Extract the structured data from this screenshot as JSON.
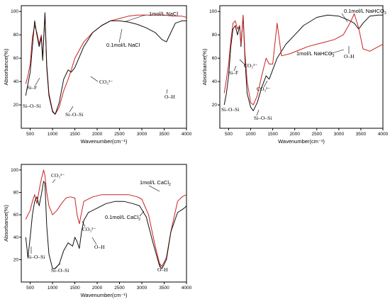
{
  "chart_data": [
    {
      "type": "line",
      "xlabel": "Wavenumber(cm⁻¹)",
      "ylabel": "Absorbance(%)",
      "xlim": [
        300,
        4000
      ],
      "ylim": [
        0,
        105
      ],
      "xticks": [
        500,
        1000,
        1500,
        2000,
        2500,
        3000,
        3500,
        4000
      ],
      "yticks": [
        20,
        40,
        60,
        80,
        100
      ],
      "series": [
        {
          "name": "1mol/L NaCl",
          "color": "#cc2222",
          "points": [
            [
              400,
              38
            ],
            [
              450,
              45
            ],
            [
              500,
              55
            ],
            [
              550,
              78
            ],
            [
              600,
              88
            ],
            [
              650,
              82
            ],
            [
              700,
              72
            ],
            [
              750,
              80
            ],
            [
              780,
              60
            ],
            [
              830,
              98
            ],
            [
              870,
              55
            ],
            [
              920,
              30
            ],
            [
              1000,
              15
            ],
            [
              1060,
              12
            ],
            [
              1150,
              18
            ],
            [
              1250,
              32
            ],
            [
              1350,
              42
            ],
            [
              1420,
              50
            ],
            [
              1500,
              60
            ],
            [
              1700,
              74
            ],
            [
              1900,
              82
            ],
            [
              2100,
              88
            ],
            [
              2300,
              92
            ],
            [
              2500,
              94
            ],
            [
              2700,
              96
            ],
            [
              2900,
              97
            ],
            [
              3100,
              97
            ],
            [
              3300,
              97
            ],
            [
              3500,
              97
            ],
            [
              3700,
              96
            ],
            [
              3900,
              96
            ],
            [
              4000,
              95
            ]
          ]
        },
        {
          "name": "0.1mol/L NaCl",
          "color": "#111111",
          "points": [
            [
              400,
              28
            ],
            [
              450,
              38
            ],
            [
              500,
              48
            ],
            [
              550,
              70
            ],
            [
              600,
              92
            ],
            [
              650,
              80
            ],
            [
              700,
              70
            ],
            [
              750,
              78
            ],
            [
              780,
              58
            ],
            [
              830,
              99
            ],
            [
              870,
              52
            ],
            [
              920,
              28
            ],
            [
              1000,
              14
            ],
            [
              1060,
              12
            ],
            [
              1150,
              22
            ],
            [
              1250,
              42
            ],
            [
              1350,
              50
            ],
            [
              1420,
              48
            ],
            [
              1500,
              52
            ],
            [
              1700,
              70
            ],
            [
              1900,
              82
            ],
            [
              2100,
              88
            ],
            [
              2300,
              92
            ],
            [
              2500,
              92
            ],
            [
              2700,
              91
            ],
            [
              2900,
              89
            ],
            [
              3100,
              86
            ],
            [
              3300,
              82
            ],
            [
              3450,
              76
            ],
            [
              3550,
              74
            ],
            [
              3650,
              82
            ],
            [
              3750,
              90
            ],
            [
              3900,
              92
            ],
            [
              4000,
              92
            ]
          ]
        }
      ],
      "legend": [
        {
          "text": "1mol/L NaCl"
        },
        {
          "text": "0.1mol/L NaCl"
        }
      ],
      "annotations": [
        {
          "text": "Si–F"
        },
        {
          "text": "Si–O–Si"
        },
        {
          "text": "Si–O–Si"
        },
        {
          "text": "CO₃²⁻"
        },
        {
          "text": "O–H"
        }
      ]
    },
    {
      "type": "line",
      "xlabel": "Wavenumber(cm⁻¹)",
      "ylabel": "Absorbance(%)",
      "xlim": [
        300,
        4000
      ],
      "ylim": [
        0,
        105
      ],
      "xticks": [
        500,
        1000,
        1500,
        2000,
        2500,
        3000,
        3500,
        4000
      ],
      "yticks": [
        20,
        40,
        60,
        80,
        100
      ],
      "series": [
        {
          "name": "0.1mol/L NaHCO₃",
          "color": "#111111",
          "points": [
            [
              400,
              20
            ],
            [
              450,
              30
            ],
            [
              500,
              45
            ],
            [
              550,
              70
            ],
            [
              600,
              85
            ],
            [
              650,
              88
            ],
            [
              700,
              80
            ],
            [
              750,
              88
            ],
            [
              780,
              70
            ],
            [
              830,
              96
            ],
            [
              870,
              60
            ],
            [
              920,
              30
            ],
            [
              1000,
              18
            ],
            [
              1060,
              15
            ],
            [
              1150,
              22
            ],
            [
              1250,
              35
            ],
            [
              1350,
              45
            ],
            [
              1420,
              42
            ],
            [
              1500,
              50
            ],
            [
              1600,
              60
            ],
            [
              1800,
              72
            ],
            [
              2000,
              80
            ],
            [
              2200,
              88
            ],
            [
              2500,
              95
            ],
            [
              2750,
              97
            ],
            [
              3000,
              96
            ],
            [
              3200,
              93
            ],
            [
              3350,
              90
            ],
            [
              3450,
              85
            ],
            [
              3550,
              90
            ],
            [
              3700,
              96
            ],
            [
              3900,
              97
            ],
            [
              4000,
              97
            ]
          ]
        },
        {
          "name": "1mol/L NaHCO₃",
          "color": "#cc2222",
          "points": [
            [
              400,
              30
            ],
            [
              450,
              42
            ],
            [
              500,
              55
            ],
            [
              550,
              75
            ],
            [
              600,
              90
            ],
            [
              650,
              92
            ],
            [
              700,
              85
            ],
            [
              750,
              88
            ],
            [
              780,
              72
            ],
            [
              830,
              97
            ],
            [
              870,
              65
            ],
            [
              920,
              40
            ],
            [
              1000,
              22
            ],
            [
              1060,
              20
            ],
            [
              1150,
              28
            ],
            [
              1250,
              45
            ],
            [
              1350,
              60
            ],
            [
              1420,
              55
            ],
            [
              1500,
              55
            ],
            [
              1600,
              90
            ],
            [
              1700,
              62
            ],
            [
              1900,
              64
            ],
            [
              2100,
              67
            ],
            [
              2300,
              70
            ],
            [
              2500,
              72
            ],
            [
              2700,
              74
            ],
            [
              2900,
              76
            ],
            [
              3100,
              80
            ],
            [
              3250,
              90
            ],
            [
              3350,
              98
            ],
            [
              3400,
              92
            ],
            [
              3450,
              86
            ],
            [
              3550,
              68
            ],
            [
              3700,
              66
            ],
            [
              3900,
              70
            ],
            [
              4000,
              72
            ]
          ]
        }
      ],
      "legend": [
        {
          "text": "0.1mol/L NaHCO₃"
        },
        {
          "text": "1mol/L NaHCO₃"
        }
      ],
      "annotations": [
        {
          "text": "Si–F"
        },
        {
          "text": "CO₃²⁻"
        },
        {
          "text": "Si–O–Si"
        },
        {
          "text": "Si–O–Si"
        },
        {
          "text": "CO₃²⁻"
        },
        {
          "text": "O–H"
        }
      ]
    },
    {
      "type": "line",
      "xlabel": "Wavenumber(cm⁻¹)",
      "ylabel": "Absorbance(%)",
      "xlim": [
        300,
        4000
      ],
      "ylim": [
        0,
        105
      ],
      "xticks": [
        500,
        1000,
        1500,
        2000,
        2500,
        3000,
        3500,
        4000
      ],
      "yticks": [
        20,
        40,
        60,
        80,
        100
      ],
      "series": [
        {
          "name": "1mol/L CaCl₂",
          "color": "#cc2222",
          "points": [
            [
              400,
              56
            ],
            [
              450,
              60
            ],
            [
              500,
              64
            ],
            [
              550,
              72
            ],
            [
              600,
              78
            ],
            [
              650,
              70
            ],
            [
              700,
              82
            ],
            [
              750,
              92
            ],
            [
              800,
              100
            ],
            [
              830,
              95
            ],
            [
              870,
              80
            ],
            [
              920,
              68
            ],
            [
              1000,
              60
            ],
            [
              1100,
              64
            ],
            [
              1200,
              70
            ],
            [
              1300,
              75
            ],
            [
              1400,
              76
            ],
            [
              1500,
              75
            ],
            [
              1550,
              60
            ],
            [
              1600,
              52
            ],
            [
              1650,
              62
            ],
            [
              1700,
              72
            ],
            [
              1900,
              76
            ],
            [
              2100,
              78
            ],
            [
              2300,
              78
            ],
            [
              2500,
              78
            ],
            [
              2700,
              78
            ],
            [
              2900,
              76
            ],
            [
              3000,
              74
            ],
            [
              3150,
              60
            ],
            [
              3300,
              32
            ],
            [
              3400,
              16
            ],
            [
              3450,
              14
            ],
            [
              3550,
              22
            ],
            [
              3650,
              45
            ],
            [
              3800,
              72
            ],
            [
              3900,
              76
            ],
            [
              4000,
              78
            ]
          ]
        },
        {
          "name": "0.1mol/L CaCl₂",
          "color": "#111111",
          "points": [
            [
              400,
              40
            ],
            [
              450,
              22
            ],
            [
              500,
              40
            ],
            [
              550,
              60
            ],
            [
              600,
              72
            ],
            [
              650,
              76
            ],
            [
              700,
              68
            ],
            [
              750,
              78
            ],
            [
              800,
              90
            ],
            [
              830,
              88
            ],
            [
              870,
              50
            ],
            [
              920,
              25
            ],
            [
              1000,
              12
            ],
            [
              1060,
              12
            ],
            [
              1150,
              16
            ],
            [
              1250,
              28
            ],
            [
              1350,
              35
            ],
            [
              1450,
              32
            ],
            [
              1500,
              40
            ],
            [
              1550,
              36
            ],
            [
              1600,
              30
            ],
            [
              1650,
              45
            ],
            [
              1700,
              55
            ],
            [
              1800,
              62
            ],
            [
              2000,
              66
            ],
            [
              2200,
              70
            ],
            [
              2400,
              72
            ],
            [
              2600,
              72
            ],
            [
              2800,
              70
            ],
            [
              2950,
              68
            ],
            [
              3100,
              58
            ],
            [
              3250,
              35
            ],
            [
              3400,
              14
            ],
            [
              3450,
              12
            ],
            [
              3550,
              20
            ],
            [
              3650,
              45
            ],
            [
              3800,
              62
            ],
            [
              3950,
              66
            ],
            [
              4000,
              68
            ]
          ]
        }
      ],
      "legend": [
        {
          "text": "1mol/L CaCl₂"
        },
        {
          "text": "0.1mol/L CaCl₂"
        }
      ],
      "annotations": [
        {
          "text": "CO₃²⁻"
        },
        {
          "text": "Si–O–Si"
        },
        {
          "text": "Si–O–Si"
        },
        {
          "text": "CO₃²⁻"
        },
        {
          "text": "O–H"
        },
        {
          "text": "O–H"
        }
      ]
    }
  ]
}
